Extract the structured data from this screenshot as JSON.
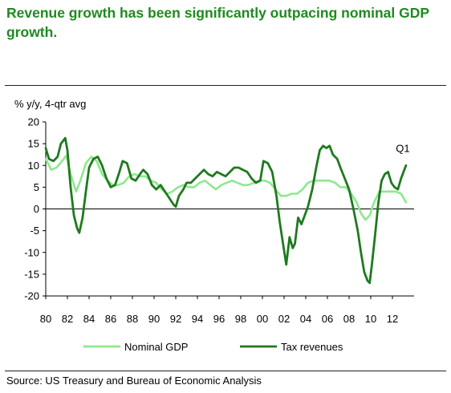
{
  "title": "Revenue growth has been significantly outpacing nominal GDP growth.",
  "source": "Source: US Treasury and Bureau of Economic Analysis",
  "chart_data": {
    "type": "line",
    "ylabel": "% y/y, 4-qtr avg",
    "xlabel": "",
    "ylim": [
      -20,
      20
    ],
    "xlim": [
      1980,
      2014
    ],
    "yticks": [
      20,
      15,
      10,
      5,
      0,
      -5,
      -10,
      -15,
      -20
    ],
    "xticks": [
      {
        "value": 1980,
        "label": "80"
      },
      {
        "value": 1982,
        "label": "82"
      },
      {
        "value": 1984,
        "label": "84"
      },
      {
        "value": 1986,
        "label": "86"
      },
      {
        "value": 1988,
        "label": "88"
      },
      {
        "value": 1990,
        "label": "90"
      },
      {
        "value": 1992,
        "label": "92"
      },
      {
        "value": 1994,
        "label": "94"
      },
      {
        "value": 1996,
        "label": "96"
      },
      {
        "value": 1998,
        "label": "98"
      },
      {
        "value": 2000,
        "label": "00"
      },
      {
        "value": 2002,
        "label": "02"
      },
      {
        "value": 2004,
        "label": "04"
      },
      {
        "value": 2006,
        "label": "06"
      },
      {
        "value": 2008,
        "label": "08"
      },
      {
        "value": 2010,
        "label": "10"
      },
      {
        "value": 2012,
        "label": "12"
      }
    ],
    "grid": false,
    "legend_position": "bottom",
    "annotation": {
      "text": "Q1",
      "x": 2013.25,
      "y": 10
    },
    "series": [
      {
        "name": "Nominal GDP",
        "color": "#8ee88e",
        "points": [
          [
            1980,
            11.5
          ],
          [
            1980.5,
            9.0
          ],
          [
            1981,
            9.5
          ],
          [
            1981.5,
            11.0
          ],
          [
            1981.9,
            12.3
          ],
          [
            1982.3,
            8.0
          ],
          [
            1982.8,
            4.0
          ],
          [
            1983.2,
            6.5
          ],
          [
            1983.7,
            10.5
          ],
          [
            1984.2,
            12.0
          ],
          [
            1984.7,
            11.0
          ],
          [
            1985.2,
            8.0
          ],
          [
            1985.7,
            6.5
          ],
          [
            1986.2,
            5.5
          ],
          [
            1986.7,
            5.5
          ],
          [
            1987.2,
            6.0
          ],
          [
            1987.7,
            7.5
          ],
          [
            1988.2,
            8.0
          ],
          [
            1988.7,
            7.5
          ],
          [
            1989.2,
            7.5
          ],
          [
            1989.7,
            6.5
          ],
          [
            1990.2,
            6.0
          ],
          [
            1990.7,
            4.5
          ],
          [
            1991.2,
            3.5
          ],
          [
            1991.7,
            4.0
          ],
          [
            1992.2,
            5.0
          ],
          [
            1992.7,
            5.5
          ],
          [
            1993.2,
            5.0
          ],
          [
            1993.7,
            5.0
          ],
          [
            1994.2,
            6.0
          ],
          [
            1994.7,
            6.5
          ],
          [
            1995.2,
            5.5
          ],
          [
            1995.7,
            4.5
          ],
          [
            1996.2,
            5.5
          ],
          [
            1996.7,
            6.0
          ],
          [
            1997.2,
            6.5
          ],
          [
            1997.7,
            6.0
          ],
          [
            1998.2,
            5.5
          ],
          [
            1998.7,
            5.5
          ],
          [
            1999.2,
            6.0
          ],
          [
            1999.7,
            6.5
          ],
          [
            2000.2,
            6.5
          ],
          [
            2000.7,
            6.0
          ],
          [
            2001.2,
            4.5
          ],
          [
            2001.7,
            3.0
          ],
          [
            2002.2,
            3.0
          ],
          [
            2002.7,
            3.5
          ],
          [
            2003.2,
            3.5
          ],
          [
            2003.7,
            4.5
          ],
          [
            2004.2,
            6.0
          ],
          [
            2004.7,
            6.5
          ],
          [
            2005.2,
            6.5
          ],
          [
            2005.7,
            6.5
          ],
          [
            2006.2,
            6.5
          ],
          [
            2006.7,
            6.0
          ],
          [
            2007.2,
            5.0
          ],
          [
            2007.7,
            5.0
          ],
          [
            2008.2,
            3.5
          ],
          [
            2008.7,
            1.5
          ],
          [
            2009.1,
            -1.0
          ],
          [
            2009.5,
            -2.5
          ],
          [
            2009.9,
            -1.5
          ],
          [
            2010.3,
            1.5
          ],
          [
            2010.8,
            4.0
          ],
          [
            2011.3,
            4.0
          ],
          [
            2011.8,
            4.0
          ],
          [
            2012.3,
            4.0
          ],
          [
            2012.8,
            3.5
          ],
          [
            2013.25,
            1.5
          ]
        ]
      },
      {
        "name": "Tax revenues",
        "color": "#1e7a1e",
        "points": [
          [
            1980,
            14.0
          ],
          [
            1980.3,
            11.5
          ],
          [
            1980.7,
            11.0
          ],
          [
            1981.1,
            12.0
          ],
          [
            1981.4,
            15.0
          ],
          [
            1981.8,
            16.3
          ],
          [
            1982.0,
            13.5
          ],
          [
            1982.3,
            5.0
          ],
          [
            1982.6,
            -1.5
          ],
          [
            1982.9,
            -4.5
          ],
          [
            1983.1,
            -5.5
          ],
          [
            1983.4,
            -2.0
          ],
          [
            1983.7,
            4.0
          ],
          [
            1984.0,
            9.5
          ],
          [
            1984.4,
            11.5
          ],
          [
            1984.8,
            12.0
          ],
          [
            1985.2,
            10.0
          ],
          [
            1985.6,
            7.0
          ],
          [
            1986.0,
            5.0
          ],
          [
            1986.4,
            5.5
          ],
          [
            1986.8,
            8.5
          ],
          [
            1987.1,
            11.0
          ],
          [
            1987.5,
            10.5
          ],
          [
            1987.9,
            7.0
          ],
          [
            1988.3,
            6.5
          ],
          [
            1988.7,
            8.0
          ],
          [
            1989.0,
            9.0
          ],
          [
            1989.4,
            8.0
          ],
          [
            1989.8,
            5.5
          ],
          [
            1990.2,
            4.5
          ],
          [
            1990.6,
            5.5
          ],
          [
            1991.0,
            4.0
          ],
          [
            1991.4,
            2.5
          ],
          [
            1991.8,
            1.0
          ],
          [
            1992.0,
            0.5
          ],
          [
            1992.3,
            3.0
          ],
          [
            1992.7,
            4.5
          ],
          [
            1993.0,
            6.0
          ],
          [
            1993.4,
            6.0
          ],
          [
            1993.8,
            7.0
          ],
          [
            1994.2,
            8.0
          ],
          [
            1994.6,
            9.0
          ],
          [
            1995.0,
            8.0
          ],
          [
            1995.4,
            7.5
          ],
          [
            1995.8,
            8.5
          ],
          [
            1996.2,
            8.0
          ],
          [
            1996.6,
            7.5
          ],
          [
            1997.0,
            8.5
          ],
          [
            1997.4,
            9.5
          ],
          [
            1997.8,
            9.5
          ],
          [
            1998.2,
            9.0
          ],
          [
            1998.6,
            8.5
          ],
          [
            1999.0,
            7.0
          ],
          [
            1999.4,
            6.0
          ],
          [
            1999.8,
            6.5
          ],
          [
            2000.1,
            11.0
          ],
          [
            2000.5,
            10.5
          ],
          [
            2000.9,
            8.5
          ],
          [
            2001.3,
            3.0
          ],
          [
            2001.6,
            -3.0
          ],
          [
            2001.9,
            -8.0
          ],
          [
            2002.2,
            -12.8
          ],
          [
            2002.5,
            -6.5
          ],
          [
            2002.8,
            -9.0
          ],
          [
            2003.0,
            -8.0
          ],
          [
            2003.3,
            -2.0
          ],
          [
            2003.6,
            -3.5
          ],
          [
            2003.9,
            -1.5
          ],
          [
            2004.2,
            0.5
          ],
          [
            2004.6,
            4.5
          ],
          [
            2005.0,
            10.0
          ],
          [
            2005.3,
            13.5
          ],
          [
            2005.6,
            14.5
          ],
          [
            2005.9,
            14.0
          ],
          [
            2006.2,
            14.5
          ],
          [
            2006.5,
            12.5
          ],
          [
            2006.9,
            11.5
          ],
          [
            2007.2,
            9.5
          ],
          [
            2007.6,
            7.0
          ],
          [
            2008.0,
            4.5
          ],
          [
            2008.4,
            0.0
          ],
          [
            2008.8,
            -5.0
          ],
          [
            2009.1,
            -10.0
          ],
          [
            2009.4,
            -14.5
          ],
          [
            2009.7,
            -16.5
          ],
          [
            2009.9,
            -17.0
          ],
          [
            2010.1,
            -13.0
          ],
          [
            2010.4,
            -6.0
          ],
          [
            2010.7,
            1.5
          ],
          [
            2011.0,
            6.5
          ],
          [
            2011.3,
            8.0
          ],
          [
            2011.6,
            8.5
          ],
          [
            2011.9,
            6.0
          ],
          [
            2012.2,
            5.0
          ],
          [
            2012.5,
            4.5
          ],
          [
            2012.8,
            7.0
          ],
          [
            2013.25,
            10.0
          ]
        ]
      }
    ]
  }
}
